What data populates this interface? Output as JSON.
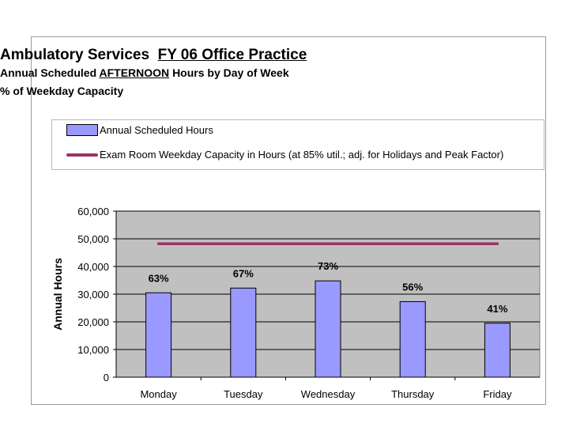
{
  "header": {
    "title_prefix": "Ambulatory Services",
    "title_underlined": "FY 06 Office Practice",
    "subtitle_prefix": "Annual Scheduled",
    "subtitle_underlined": "AFTERNOON",
    "subtitle_suffix": "Hours by Day of Week",
    "subtitle2": "% of Weekday Capacity"
  },
  "legend": {
    "bar_label": "Annual Scheduled Hours",
    "line_label": "Exam Room Weekday Capacity in Hours (at 85% util.; adj. for Holidays and Peak Factor)"
  },
  "colors": {
    "bar": "#9999ff",
    "bar_border": "#000000",
    "line": "#993366",
    "plot_bg": "#c0c0c0"
  },
  "chart_data": {
    "type": "bar",
    "categories": [
      "Monday",
      "Tuesday",
      "Wednesday",
      "Thursday",
      "Friday"
    ],
    "series": [
      {
        "name": "Annual Scheduled Hours",
        "values": [
          30500,
          32200,
          34800,
          27300,
          19500
        ],
        "data_labels": [
          "63%",
          "67%",
          "73%",
          "56%",
          "41%"
        ]
      },
      {
        "name": "Exam Room Weekday Capacity in Hours (at 85% util.; adj. for Holidays and Peak Factor)",
        "type": "line",
        "values": [
          48200,
          48200,
          48200,
          48200,
          48200
        ]
      }
    ],
    "ylabel": "Annual Hours",
    "xlabel": "",
    "ylim": [
      0,
      60000
    ],
    "yticks": [
      0,
      10000,
      20000,
      30000,
      40000,
      50000,
      60000
    ],
    "ytick_labels": [
      "0",
      "10,000",
      "20,000",
      "30,000",
      "40,000",
      "50,000",
      "60,000"
    ],
    "grid": true
  }
}
